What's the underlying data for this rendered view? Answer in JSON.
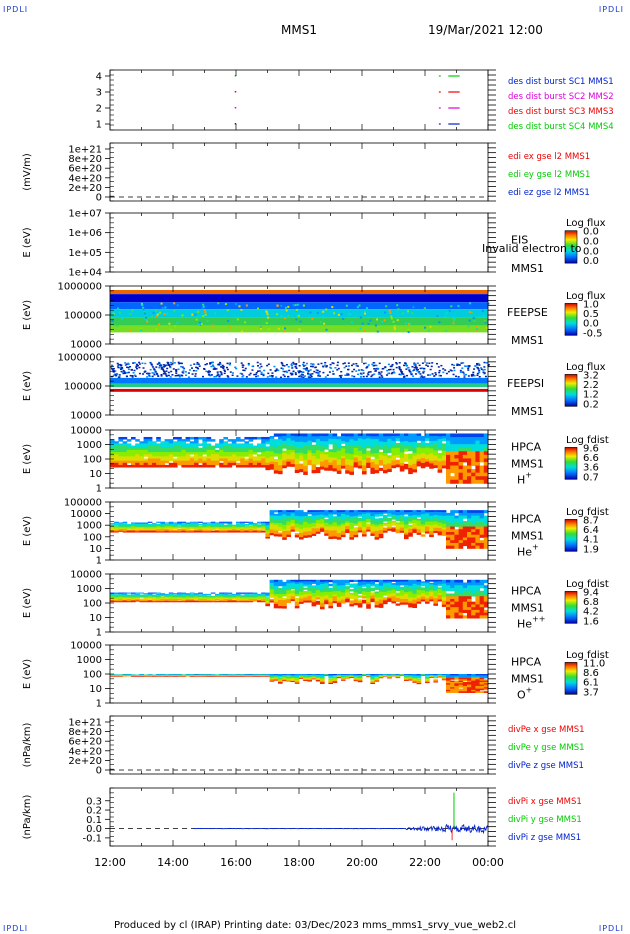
{
  "corners": {
    "tl": "IPDLI",
    "tr": "IPDLI",
    "bl": "IPDLI",
    "br": "IPDLI"
  },
  "header": {
    "spacecraft": "MMS1",
    "datetime": "19/Mar/2021 12:00"
  },
  "footer": "Produced by cl (IRAP)    Printing date: 03/Dec/2023    mms_mms1_srvy_vue_web2.cl",
  "time_axis": {
    "ticks": [
      "12:00",
      "14:00",
      "16:00",
      "18:00",
      "20:00",
      "22:00",
      "00:00"
    ]
  },
  "colors": {
    "red": "#ee0000",
    "green": "#00cc00",
    "blue": "#0022cc",
    "magenta": "#dd00dd"
  },
  "chart_data": [
    {
      "id": "burst",
      "type": "scatter",
      "ylabel": "",
      "yticks": [
        "1",
        "2",
        "3",
        "4"
      ],
      "legend": [
        {
          "text": "des dist burst SC1 MMS1",
          "color": "#0022cc"
        },
        {
          "text": "des dist burst SC2 MMS2",
          "color": "#dd00dd"
        },
        {
          "text": "des dist burst SC3 MMS3",
          "color": "#ee0000"
        },
        {
          "text": "des dist burst SC4 MMS4",
          "color": "#00cc00"
        }
      ]
    },
    {
      "id": "edi",
      "type": "line",
      "ylabel": "(mV/m)",
      "yticks": [
        "0",
        "2e+20",
        "4e+20",
        "6e+20",
        "8e+20",
        "1e+21"
      ],
      "legend": [
        {
          "text": "edi ex gse l2 MMS1",
          "color": "#ee0000"
        },
        {
          "text": "edi ey gse l2 MMS1",
          "color": "#00cc00"
        },
        {
          "text": "edi ez gse l2 MMS1",
          "color": "#0022cc"
        }
      ]
    },
    {
      "id": "eis",
      "type": "heatmap",
      "ylabel": "E (eV)",
      "yticks": [
        "1e+04",
        "1e+05",
        "1e+06",
        "1e+07"
      ],
      "labels": [
        "EIS",
        "MMS1"
      ],
      "overlay": "Invalid electron to",
      "cb_title": "Log flux",
      "cb_ticks": [
        "0.0",
        "0.0",
        "0.0",
        "0.0"
      ]
    },
    {
      "id": "feepse",
      "type": "heatmap",
      "ylabel": "E (eV)",
      "yticks": [
        "10000",
        "100000",
        "1000000"
      ],
      "labels": [
        "FEEPSE",
        "MMS1"
      ],
      "cb_title": "Log flux",
      "cb_ticks": [
        "1.0",
        "0.5",
        "0.0",
        "-0.5"
      ]
    },
    {
      "id": "feepsi",
      "type": "heatmap",
      "ylabel": "E (eV)",
      "yticks": [
        "10000",
        "100000",
        "1000000"
      ],
      "labels": [
        "FEEPSI",
        "MMS1"
      ],
      "cb_title": "Log flux",
      "cb_ticks": [
        "3.2",
        "2.2",
        "1.2",
        "0.2"
      ]
    },
    {
      "id": "hpca_h",
      "type": "heatmap",
      "ylabel": "E (eV)",
      "yticks": [
        "1",
        "10",
        "100",
        "1000",
        "10000"
      ],
      "labels": [
        "HPCA",
        "MMS1",
        "H+"
      ],
      "cb_title": "Log fdist",
      "cb_ticks": [
        "9.6",
        "6.6",
        "3.6",
        "0.7"
      ]
    },
    {
      "id": "hpca_he",
      "type": "heatmap",
      "ylabel": "E (eV)",
      "yticks": [
        "1",
        "10",
        "100",
        "1000",
        "10000",
        "100000"
      ],
      "labels": [
        "HPCA",
        "MMS1",
        "He+"
      ],
      "cb_title": "Log fdist",
      "cb_ticks": [
        "8.7",
        "6.4",
        "4.1",
        "1.9"
      ]
    },
    {
      "id": "hpca_hepp",
      "type": "heatmap",
      "ylabel": "E (eV)",
      "yticks": [
        "1",
        "10",
        "100",
        "1000",
        "10000"
      ],
      "labels": [
        "HPCA",
        "MMS1",
        "He++"
      ],
      "cb_title": "Log fdist",
      "cb_ticks": [
        "9.4",
        "6.8",
        "4.2",
        "1.6"
      ]
    },
    {
      "id": "hpca_o",
      "type": "heatmap",
      "ylabel": "E (eV)",
      "yticks": [
        "1",
        "10",
        "100",
        "1000",
        "10000"
      ],
      "labels": [
        "HPCA",
        "MMS1",
        "O+"
      ],
      "cb_title": "Log fdist",
      "cb_ticks": [
        "11.0",
        "8.6",
        "6.1",
        "3.7"
      ]
    },
    {
      "id": "divpe",
      "type": "line",
      "ylabel": "(nPa/km)",
      "yticks": [
        "0",
        "2e+20",
        "4e+20",
        "6e+20",
        "8e+20",
        "1e+21"
      ],
      "legend": [
        {
          "text": "divPe x gse MMS1",
          "color": "#ee0000"
        },
        {
          "text": "divPe y gse MMS1",
          "color": "#00cc00"
        },
        {
          "text": "divPe z gse MMS1",
          "color": "#0022cc"
        }
      ]
    },
    {
      "id": "divpi",
      "type": "line",
      "ylabel": "(nPa/km)",
      "yticks": [
        "-0.1",
        "0.0",
        "0.1",
        "0.2",
        "0.3"
      ],
      "legend": [
        {
          "text": "divPi x gse MMS1",
          "color": "#ee0000"
        },
        {
          "text": "divPi y gse MMS1",
          "color": "#00cc00"
        },
        {
          "text": "divPi z gse MMS1",
          "color": "#0022cc"
        }
      ]
    }
  ]
}
